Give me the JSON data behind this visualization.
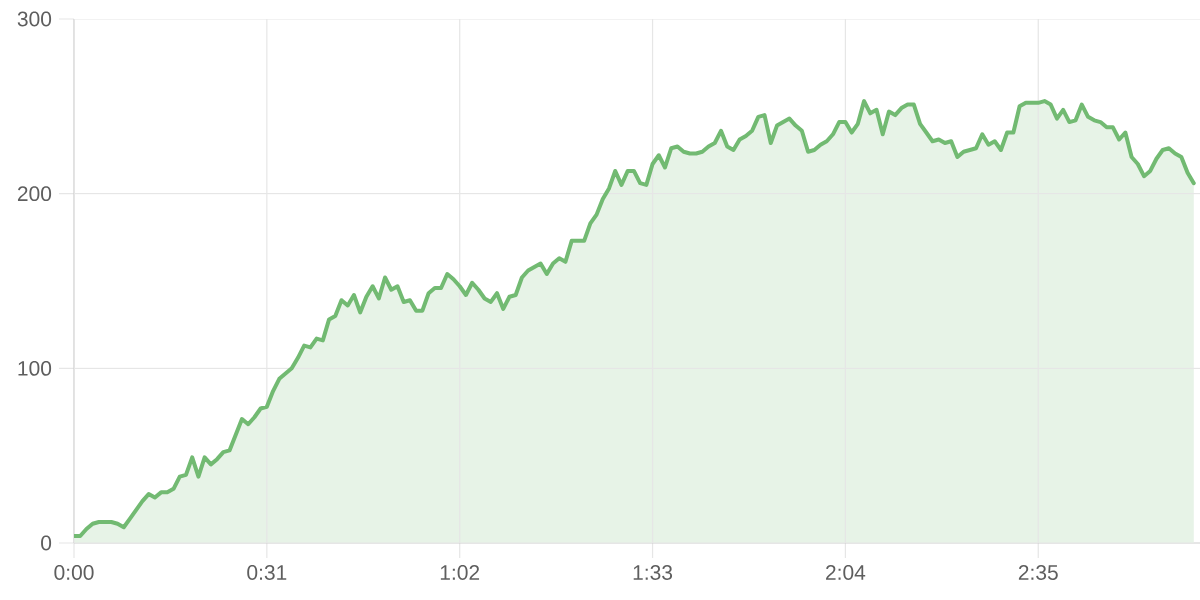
{
  "chart_data": {
    "type": "area",
    "color": "#72ba72",
    "x": [
      0,
      1,
      2,
      3,
      4,
      5,
      6,
      7,
      8,
      9,
      10,
      11,
      12,
      13,
      14,
      15,
      16,
      17,
      18,
      19,
      20,
      21,
      22,
      23,
      24,
      25,
      26,
      27,
      28,
      29,
      30,
      31,
      32,
      33,
      34,
      35,
      36,
      37,
      38,
      39,
      40,
      41,
      42,
      43,
      44,
      45,
      46,
      47,
      48,
      49,
      50,
      51,
      52,
      53,
      54,
      55,
      56,
      57,
      58,
      59,
      60,
      61,
      62,
      63,
      64,
      65,
      66,
      67,
      68,
      69,
      70,
      71,
      72,
      73,
      74,
      75,
      76,
      77,
      78,
      79,
      80,
      81,
      82,
      83,
      84,
      85,
      86,
      87,
      88,
      89,
      90,
      91,
      92,
      93,
      94,
      95,
      96,
      97,
      98,
      99,
      100,
      101,
      102,
      103,
      104,
      105,
      106,
      107,
      108,
      109,
      110,
      111,
      112,
      113,
      114,
      115,
      116,
      117,
      118,
      119,
      120,
      121,
      122,
      123,
      124,
      125,
      126,
      127,
      128,
      129,
      130,
      131,
      132,
      133,
      134,
      135,
      136,
      137,
      138,
      139,
      140,
      141,
      142,
      143,
      144,
      145,
      146,
      147,
      148,
      149,
      150,
      151,
      152,
      153,
      154,
      155,
      156,
      157,
      158,
      159,
      160,
      161,
      162,
      163,
      164,
      165,
      166,
      167,
      168,
      169,
      170,
      171,
      172,
      173,
      174,
      175,
      176,
      177,
      178,
      179,
      180
    ],
    "values": [
      4,
      4,
      8,
      11,
      12,
      12,
      12,
      11,
      9,
      14,
      19,
      24,
      28,
      26,
      29,
      29,
      31,
      38,
      39,
      49,
      38,
      49,
      45,
      48,
      52,
      53,
      62,
      71,
      68,
      72,
      77,
      78,
      87,
      94,
      97,
      100,
      106,
      113,
      112,
      117,
      116,
      128,
      130,
      139,
      136,
      142,
      132,
      141,
      147,
      140,
      152,
      145,
      147,
      138,
      139,
      133,
      133,
      143,
      146,
      146,
      154,
      151,
      147,
      142,
      149,
      145,
      140,
      138,
      143,
      134,
      141,
      142,
      152,
      156,
      158,
      160,
      154,
      160,
      163,
      161,
      173,
      173,
      173,
      183,
      188,
      197,
      203,
      213,
      205,
      213,
      213,
      206,
      205,
      217,
      222,
      215,
      226,
      227,
      224,
      223,
      223,
      224,
      227,
      229,
      236,
      227,
      225,
      231,
      233,
      236,
      244,
      245,
      229,
      239,
      241,
      243,
      239,
      236,
      224,
      225,
      228,
      230,
      234,
      241,
      241,
      235,
      240,
      253,
      246,
      248,
      234,
      247,
      245,
      249,
      251,
      251,
      240,
      235,
      230,
      231,
      229,
      230,
      221,
      224,
      225,
      226,
      234,
      228,
      230,
      225,
      235,
      235,
      250,
      252,
      252,
      252,
      253,
      251,
      243,
      248,
      241,
      242,
      251,
      244,
      242,
      241,
      238,
      238,
      231,
      235,
      221,
      217,
      210,
      213,
      220,
      225,
      226,
      223,
      221,
      212,
      206
    ],
    "xlim": [
      0,
      181
    ],
    "ylim": [
      0,
      300
    ],
    "xticks": [
      {
        "value": 0,
        "label": "0:00"
      },
      {
        "value": 31,
        "label": "0:31"
      },
      {
        "value": 62,
        "label": "1:02"
      },
      {
        "value": 93,
        "label": "1:33"
      },
      {
        "value": 124,
        "label": "2:04"
      },
      {
        "value": 155,
        "label": "2:35"
      }
    ],
    "yticks": [
      0,
      100,
      200,
      300
    ],
    "grid": true
  }
}
